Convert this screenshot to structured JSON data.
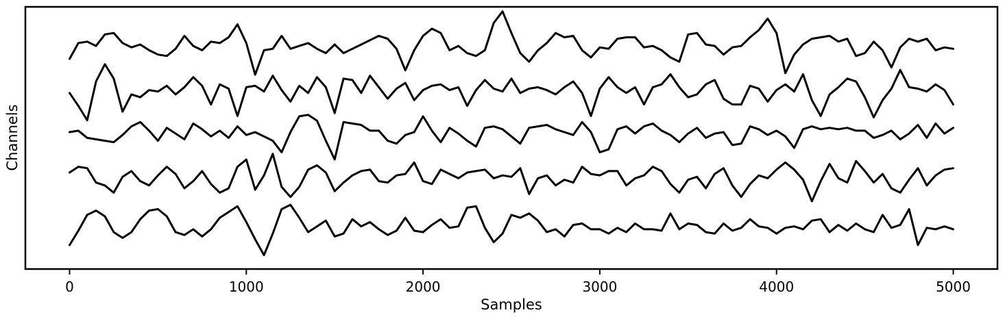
{
  "chart_data": {
    "type": "line",
    "title": "",
    "xlabel": "Samples",
    "ylabel": "Channels",
    "xlim": [
      -250,
      5250
    ],
    "x_ticks": [
      0,
      1000,
      2000,
      3000,
      4000,
      5000
    ],
    "y_ticks": [],
    "grid": false,
    "legend": "none",
    "line_color": "#000000",
    "series": [
      {
        "x": [
          0,
          50,
          100,
          150,
          200,
          250,
          300,
          350,
          400,
          450,
          500,
          550,
          600,
          650,
          700,
          750,
          800,
          850,
          900,
          950,
          1000,
          1050,
          1100,
          1150,
          1200,
          1250,
          1300,
          1350,
          1400,
          1450,
          1500,
          1550,
          1600,
          1650,
          1700,
          1750,
          1800,
          1850,
          1900,
          1950,
          2000,
          2050,
          2100,
          2150,
          2200,
          2250,
          2300,
          2350,
          2400,
          2450,
          2500,
          2550,
          2600,
          2650,
          2700,
          2750,
          2800,
          2850,
          2900,
          2950,
          3000,
          3050,
          3100,
          3150,
          3200,
          3250,
          3300,
          3350,
          3400,
          3450,
          3500,
          3550,
          3600,
          3650,
          3700,
          3750,
          3800,
          3850,
          3900,
          3950,
          4000,
          4050,
          4100,
          4150,
          4200,
          4250,
          4300,
          4350,
          4400,
          4450,
          4500,
          4550,
          4600,
          4650,
          4700,
          4750,
          4800,
          4850,
          4900,
          4950,
          5000
        ],
        "y": [
          0.0,
          0.55,
          0.6,
          0.45,
          0.85,
          0.9,
          0.55,
          0.4,
          0.5,
          0.3,
          0.15,
          0.1,
          0.35,
          0.8,
          0.45,
          0.3,
          0.6,
          0.55,
          0.75,
          1.2,
          0.55,
          -0.55,
          0.3,
          0.35,
          0.8,
          0.35,
          0.45,
          0.55,
          0.35,
          0.2,
          0.5,
          0.2,
          0.35,
          0.5,
          0.65,
          0.8,
          0.7,
          0.35,
          -0.4,
          0.3,
          0.8,
          1.05,
          0.9,
          0.3,
          0.45,
          0.2,
          0.1,
          0.3,
          1.25,
          1.65,
          0.9,
          0.2,
          -0.1,
          0.3,
          0.55,
          0.9,
          0.75,
          0.8,
          0.3,
          0.05,
          0.4,
          0.35,
          0.7,
          0.75,
          0.75,
          0.4,
          0.45,
          0.3,
          0.05,
          -0.1,
          0.85,
          0.9,
          0.5,
          0.45,
          0.15,
          0.4,
          0.45,
          0.75,
          1.0,
          1.4,
          0.9,
          -0.5,
          0.15,
          0.5,
          0.7,
          0.75,
          0.8,
          0.6,
          0.7,
          0.1,
          0.2,
          0.6,
          0.3,
          -0.3,
          0.4,
          0.7,
          0.6,
          0.7,
          0.3,
          0.4,
          0.35
        ]
      },
      {
        "x": [
          0,
          50,
          100,
          150,
          200,
          250,
          300,
          350,
          400,
          450,
          500,
          550,
          600,
          650,
          700,
          750,
          800,
          850,
          900,
          950,
          1000,
          1050,
          1100,
          1150,
          1200,
          1250,
          1300,
          1350,
          1400,
          1450,
          1500,
          1550,
          1600,
          1650,
          1700,
          1750,
          1800,
          1850,
          1900,
          1950,
          2000,
          2050,
          2100,
          2150,
          2200,
          2250,
          2300,
          2350,
          2400,
          2450,
          2500,
          2550,
          2600,
          2650,
          2700,
          2750,
          2800,
          2850,
          2900,
          2950,
          3000,
          3050,
          3100,
          3150,
          3200,
          3250,
          3300,
          3350,
          3400,
          3450,
          3500,
          3550,
          3600,
          3650,
          3700,
          3750,
          3800,
          3850,
          3900,
          3950,
          4000,
          4050,
          4100,
          4150,
          4200,
          4250,
          4300,
          4350,
          4400,
          4450,
          4500,
          4550,
          4600,
          4650,
          4700,
          4750,
          4800,
          4850,
          4900,
          4950,
          5000
        ],
        "y": [
          0.1,
          -0.35,
          -0.85,
          0.5,
          1.1,
          0.6,
          -0.55,
          0.05,
          -0.05,
          0.2,
          0.15,
          0.35,
          0.05,
          0.3,
          0.65,
          0.35,
          -0.3,
          0.4,
          0.25,
          -0.7,
          0.3,
          0.35,
          0.15,
          0.7,
          0.2,
          -0.2,
          0.35,
          0.1,
          0.65,
          0.3,
          -0.6,
          0.6,
          0.55,
          0.1,
          0.7,
          0.3,
          -0.1,
          0.25,
          0.45,
          -0.15,
          0.2,
          0.35,
          0.4,
          0.2,
          0.3,
          -0.35,
          0.2,
          0.55,
          0.25,
          0.15,
          0.6,
          0.1,
          0.25,
          0.3,
          0.2,
          0.05,
          0.3,
          0.5,
          0.1,
          -0.7,
          0.25,
          0.65,
          0.3,
          0.1,
          0.3,
          -0.3,
          0.3,
          0.4,
          0.75,
          0.3,
          -0.05,
          0.05,
          0.4,
          0.55,
          -0.1,
          -0.3,
          -0.3,
          0.35,
          0.25,
          -0.2,
          0.2,
          0.4,
          0.15,
          0.75,
          -0.15,
          -0.7,
          0.05,
          0.3,
          0.6,
          0.5,
          -0.05,
          -0.75,
          -0.15,
          0.25,
          0.9,
          0.3,
          0.25,
          0.15,
          0.4,
          0.2,
          -0.3
        ]
      },
      {
        "x": [
          0,
          50,
          100,
          150,
          200,
          250,
          300,
          350,
          400,
          450,
          500,
          550,
          600,
          650,
          700,
          750,
          800,
          850,
          900,
          950,
          1000,
          1050,
          1100,
          1150,
          1200,
          1250,
          1300,
          1350,
          1400,
          1450,
          1500,
          1550,
          1600,
          1650,
          1700,
          1750,
          1800,
          1850,
          1900,
          1950,
          2000,
          2050,
          2100,
          2150,
          2200,
          2250,
          2300,
          2350,
          2400,
          2450,
          2500,
          2550,
          2600,
          2650,
          2700,
          2750,
          2800,
          2850,
          2900,
          2950,
          3000,
          3050,
          3100,
          3150,
          3200,
          3250,
          3300,
          3350,
          3400,
          3450,
          3500,
          3550,
          3600,
          3650,
          3700,
          3750,
          3800,
          3850,
          3900,
          3950,
          4000,
          4050,
          4100,
          4150,
          4200,
          4250,
          4300,
          4350,
          4400,
          4450,
          4500,
          4550,
          4600,
          4650,
          4700,
          4750,
          4800,
          4850,
          4900,
          4950,
          5000
        ],
        "y": [
          0.0,
          0.05,
          -0.2,
          -0.25,
          -0.3,
          -0.35,
          -0.1,
          0.2,
          0.35,
          0.05,
          -0.3,
          0.15,
          -0.05,
          -0.25,
          0.3,
          0.1,
          -0.15,
          0.05,
          -0.2,
          0.2,
          -0.1,
          0.0,
          -0.15,
          -0.3,
          -0.7,
          0.0,
          0.55,
          0.6,
          0.4,
          -0.3,
          -0.95,
          0.35,
          0.3,
          0.25,
          0.05,
          0.05,
          -0.3,
          -0.4,
          -0.1,
          0.0,
          0.55,
          0.05,
          -0.35,
          0.15,
          -0.05,
          -0.3,
          -0.5,
          0.15,
          0.2,
          0.1,
          -0.15,
          -0.4,
          0.15,
          0.2,
          0.25,
          0.1,
          0.0,
          -0.1,
          0.35,
          0.0,
          -0.7,
          -0.6,
          0.1,
          0.2,
          -0.05,
          0.2,
          0.3,
          0.05,
          -0.1,
          -0.35,
          -0.05,
          0.15,
          -0.2,
          -0.05,
          0.0,
          -0.45,
          -0.4,
          0.2,
          0.1,
          -0.1,
          0.05,
          -0.15,
          -0.55,
          0.1,
          0.2,
          0.1,
          0.15,
          0.1,
          0.15,
          0.05,
          0.05,
          -0.2,
          -0.1,
          0.05,
          -0.25,
          -0.05,
          0.25,
          -0.2,
          0.3,
          -0.05,
          0.15
        ]
      },
      {
        "x": [
          0,
          50,
          100,
          150,
          200,
          250,
          300,
          350,
          400,
          450,
          500,
          550,
          600,
          650,
          700,
          750,
          800,
          850,
          900,
          950,
          1000,
          1050,
          1100,
          1150,
          1200,
          1250,
          1300,
          1350,
          1400,
          1450,
          1500,
          1550,
          1600,
          1650,
          1700,
          1750,
          1800,
          1850,
          1900,
          1950,
          2000,
          2050,
          2100,
          2150,
          2200,
          2250,
          2300,
          2350,
          2400,
          2450,
          2500,
          2550,
          2600,
          2650,
          2700,
          2750,
          2800,
          2850,
          2900,
          2950,
          3000,
          3050,
          3100,
          3150,
          3200,
          3250,
          3300,
          3350,
          3400,
          3450,
          3500,
          3550,
          3600,
          3650,
          3700,
          3750,
          3800,
          3850,
          3900,
          3950,
          4000,
          4050,
          4100,
          4150,
          4200,
          4250,
          4300,
          4350,
          4400,
          4450,
          4500,
          4550,
          4600,
          4650,
          4700,
          4750,
          4800,
          4850,
          4900,
          4950,
          5000
        ],
        "y": [
          0.0,
          0.2,
          0.15,
          -0.35,
          -0.45,
          -0.7,
          -0.15,
          0.05,
          -0.3,
          -0.45,
          -0.1,
          0.2,
          -0.05,
          -0.55,
          -0.3,
          0.05,
          -0.4,
          -0.7,
          -0.55,
          0.2,
          0.45,
          -0.6,
          -0.1,
          0.65,
          -0.5,
          -0.85,
          -0.5,
          0.1,
          0.25,
          0.0,
          -0.65,
          -0.35,
          -0.1,
          0.05,
          0.1,
          -0.3,
          -0.35,
          -0.1,
          -0.05,
          0.35,
          -0.3,
          -0.4,
          0.1,
          -0.05,
          -0.2,
          0.0,
          0.05,
          0.1,
          -0.2,
          -0.1,
          -0.15,
          0.15,
          -0.75,
          -0.2,
          -0.1,
          -0.45,
          -0.25,
          -0.35,
          0.2,
          -0.05,
          -0.1,
          0.05,
          0.05,
          -0.45,
          -0.2,
          -0.1,
          0.2,
          0.05,
          -0.4,
          -0.7,
          -0.25,
          -0.15,
          -0.55,
          -0.05,
          0.15,
          -0.45,
          -0.85,
          -0.4,
          -0.1,
          -0.2,
          0.1,
          0.35,
          0.1,
          -0.25,
          -1.0,
          -0.3,
          0.3,
          -0.2,
          -0.35,
          0.4,
          0.05,
          -0.35,
          -0.05,
          -0.55,
          -0.7,
          -0.25,
          0.15,
          -0.45,
          -0.1,
          0.1,
          0.15
        ]
      },
      {
        "x": [
          0,
          50,
          100,
          150,
          200,
          250,
          300,
          350,
          400,
          450,
          500,
          550,
          600,
          650,
          700,
          750,
          800,
          850,
          900,
          950,
          1000,
          1050,
          1100,
          1150,
          1200,
          1250,
          1300,
          1350,
          1400,
          1450,
          1500,
          1550,
          1600,
          1650,
          1700,
          1750,
          1800,
          1850,
          1900,
          1950,
          2000,
          2050,
          2100,
          2150,
          2200,
          2250,
          2300,
          2350,
          2400,
          2450,
          2500,
          2550,
          2600,
          2650,
          2700,
          2750,
          2800,
          2850,
          2900,
          2950,
          3000,
          3050,
          3100,
          3150,
          3200,
          3250,
          3300,
          3350,
          3400,
          3450,
          3500,
          3550,
          3600,
          3650,
          3700,
          3750,
          3800,
          3850,
          3900,
          3950,
          4000,
          4050,
          4100,
          4150,
          4200,
          4250,
          4300,
          4350,
          4400,
          4450,
          4500,
          4550,
          4600,
          4650,
          4700,
          4750,
          4800,
          4850,
          4900,
          4950,
          5000
        ],
        "y": [
          0.0,
          0.5,
          1.05,
          1.2,
          1.0,
          0.45,
          0.25,
          0.45,
          0.9,
          1.2,
          1.25,
          1.0,
          0.45,
          0.35,
          0.55,
          0.3,
          0.55,
          0.95,
          1.15,
          1.35,
          0.8,
          0.2,
          -0.35,
          0.4,
          1.25,
          1.4,
          0.95,
          0.45,
          0.65,
          0.85,
          0.3,
          0.4,
          0.9,
          0.65,
          0.8,
          0.55,
          0.35,
          0.5,
          0.95,
          0.5,
          0.45,
          0.7,
          0.9,
          0.6,
          0.65,
          1.3,
          1.35,
          0.6,
          0.1,
          0.4,
          1.05,
          0.95,
          1.1,
          0.85,
          0.45,
          0.55,
          0.3,
          0.7,
          0.75,
          0.55,
          0.55,
          0.4,
          0.6,
          0.45,
          0.75,
          0.55,
          0.55,
          0.5,
          1.1,
          0.55,
          0.75,
          0.7,
          0.45,
          0.4,
          0.75,
          0.5,
          0.6,
          0.9,
          0.65,
          0.6,
          0.4,
          0.6,
          0.65,
          0.55,
          0.85,
          0.9,
          0.45,
          0.7,
          0.5,
          0.75,
          0.55,
          0.45,
          1.05,
          0.6,
          0.7,
          1.25,
          0.0,
          0.6,
          0.55,
          0.65,
          0.55
        ]
      }
    ]
  }
}
